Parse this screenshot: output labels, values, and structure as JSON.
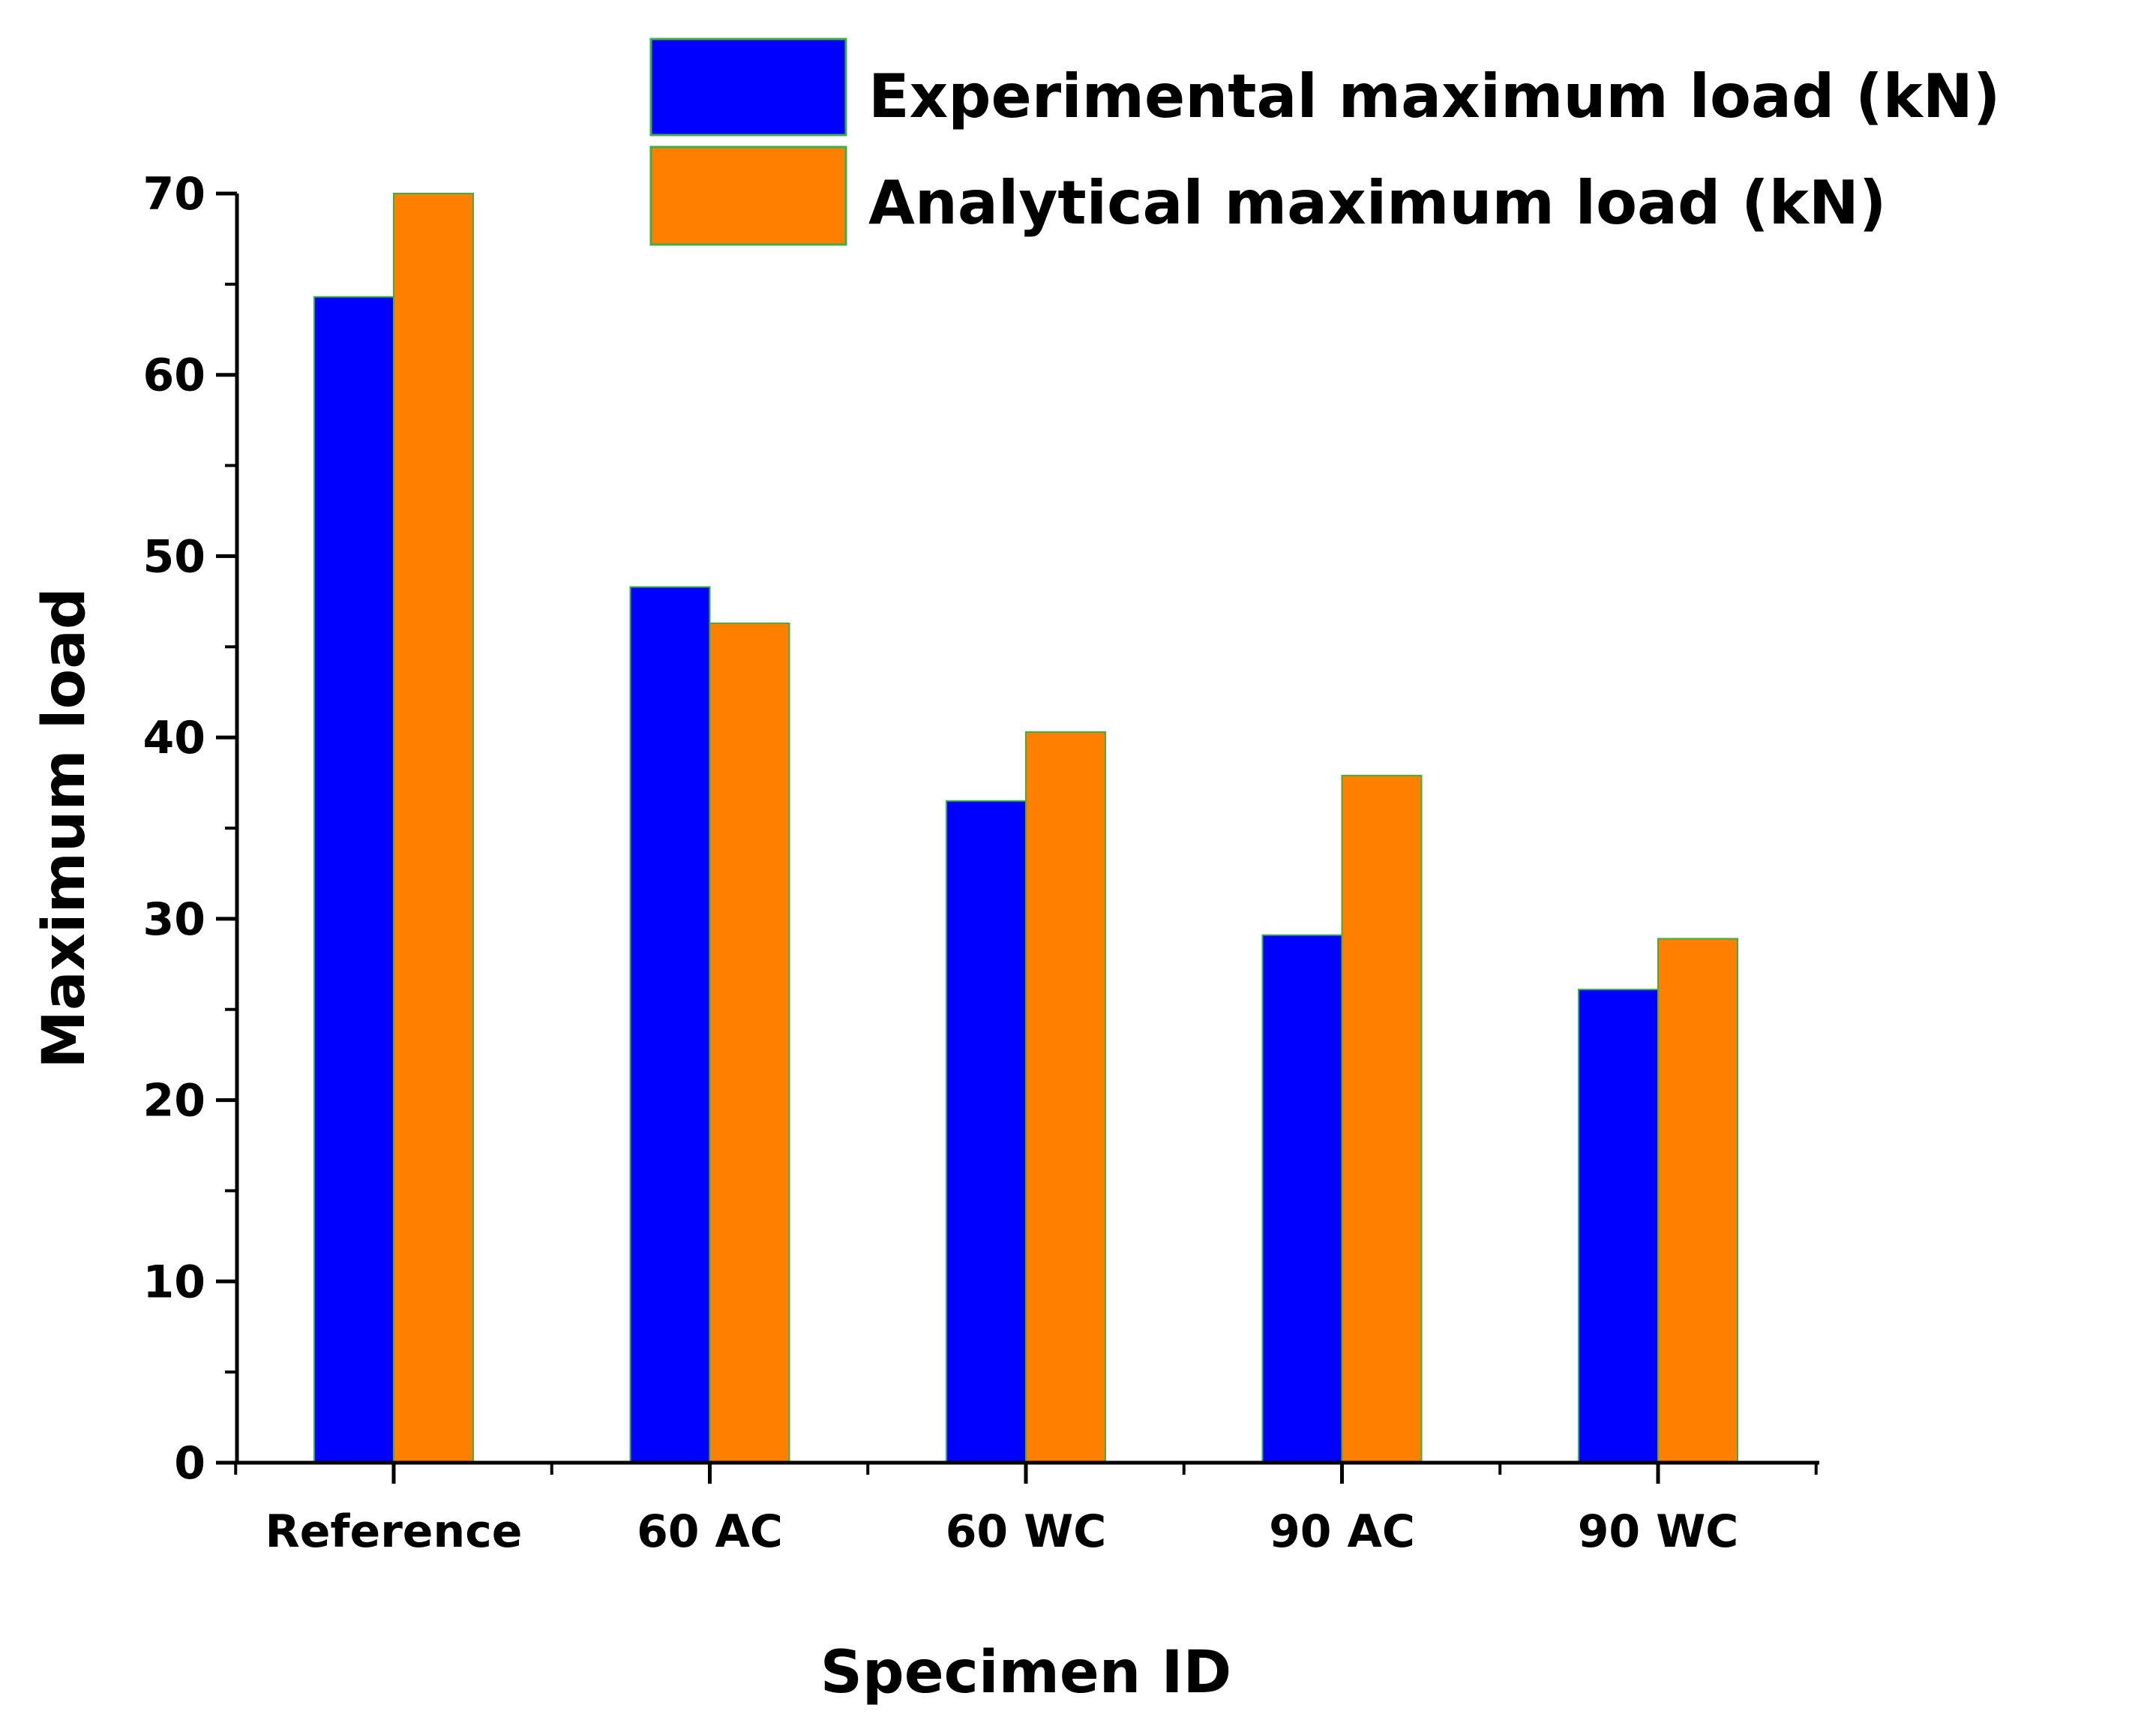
{
  "chart_data": {
    "type": "bar",
    "title": "",
    "xlabel": "Specimen ID",
    "ylabel": "Maximum load",
    "ylim": [
      0,
      70
    ],
    "yticks": [
      0,
      10,
      20,
      30,
      40,
      50,
      60,
      70
    ],
    "categories": [
      "Reference",
      "60 AC",
      "60 WC",
      "90 AC",
      "90 WC"
    ],
    "series": [
      {
        "name": "Experimental maximum load (kN)",
        "color": "#0000ff",
        "values": [
          64.3,
          48.3,
          36.5,
          29.1,
          26.1
        ]
      },
      {
        "name": "Analytical maximum load (kN)",
        "color": "#ff8000",
        "values": [
          70.0,
          46.3,
          40.3,
          37.9,
          28.9
        ]
      }
    ],
    "legend_position": "top-right",
    "grid": false
  }
}
